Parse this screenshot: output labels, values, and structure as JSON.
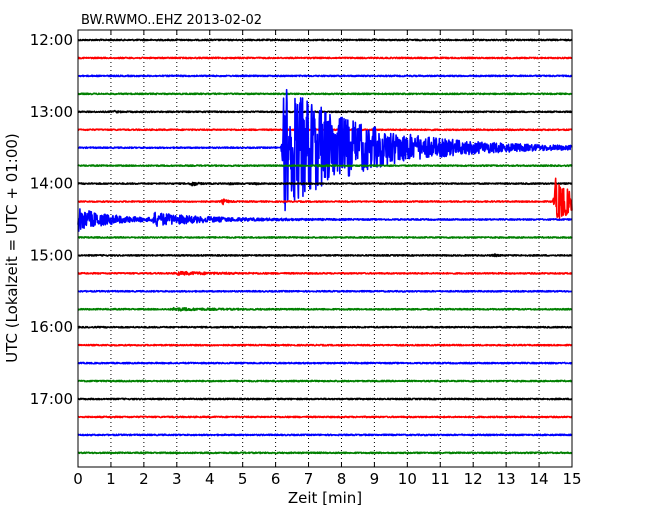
{
  "chart_data": {
    "type": "line",
    "subtype": "dayplot-seismogram",
    "title": "BW.RWMO..EHZ 2013-02-02",
    "xlabel": "Zeit  [min]",
    "ylabel": "UTC (Lokalzeit = UTC + 01:00)",
    "xlim": [
      0,
      15
    ],
    "x_ticks": [
      0,
      1,
      2,
      3,
      4,
      5,
      6,
      7,
      8,
      9,
      10,
      11,
      12,
      13,
      14,
      15
    ],
    "x_tick_labels": [
      "0",
      "1",
      "2",
      "3",
      "4",
      "5",
      "6",
      "7",
      "8",
      "9",
      "10",
      "11",
      "12",
      "13",
      "14",
      "15"
    ],
    "y_tick_labels": [
      "12:00",
      "13:00",
      "14:00",
      "15:00",
      "16:00",
      "17:00"
    ],
    "grid": {
      "x": true,
      "y": false,
      "style": "dotted"
    },
    "interval_minutes": 15,
    "trace_colors": [
      "#000000",
      "#ff0000",
      "#0000ff",
      "#008000"
    ],
    "traces": [
      {
        "start": "12:00",
        "events": []
      },
      {
        "start": "12:15",
        "events": []
      },
      {
        "start": "12:30",
        "events": []
      },
      {
        "start": "12:45",
        "events": []
      },
      {
        "start": "13:00",
        "events": [
          {
            "t": 1.1,
            "amp": 0.05
          }
        ]
      },
      {
        "start": "13:15",
        "events": []
      },
      {
        "start": "13:30",
        "events": [
          {
            "t": 6.25,
            "amp": 4.5,
            "decay": 2.4
          }
        ]
      },
      {
        "start": "13:45",
        "events": [
          {
            "t": 7.3,
            "amp": 0.08
          }
        ]
      },
      {
        "start": "14:00",
        "events": [
          {
            "t": 3.45,
            "amp": 0.2
          },
          {
            "t": 4.6,
            "amp": 0.04
          },
          {
            "t": 5.4,
            "amp": 0.04
          }
        ]
      },
      {
        "start": "14:15",
        "events": [
          {
            "t": 4.4,
            "amp": 0.18
          },
          {
            "t": 14.5,
            "amp": 1.6,
            "decay": 0.6
          }
        ]
      },
      {
        "start": "14:30",
        "events": [
          {
            "t": 0.0,
            "amp": 0.8,
            "decay": 1.0
          },
          {
            "t": 2.3,
            "amp": 0.4,
            "decay": 1.6
          }
        ]
      },
      {
        "start": "14:45",
        "events": []
      },
      {
        "start": "15:00",
        "events": [
          {
            "t": 12.6,
            "amp": 0.08
          }
        ]
      },
      {
        "start": "15:15",
        "events": [
          {
            "t": 3.0,
            "amp": 0.1,
            "decay": 1.0
          }
        ]
      },
      {
        "start": "15:30",
        "events": []
      },
      {
        "start": "15:45",
        "events": [
          {
            "t": 2.9,
            "amp": 0.08,
            "decay": 1.0
          }
        ]
      },
      {
        "start": "16:00",
        "events": []
      },
      {
        "start": "16:15",
        "events": []
      },
      {
        "start": "16:30",
        "events": []
      },
      {
        "start": "16:45",
        "events": []
      },
      {
        "start": "17:00",
        "events": []
      },
      {
        "start": "17:15",
        "events": []
      },
      {
        "start": "17:30",
        "events": []
      },
      {
        "start": "17:45",
        "events": []
      }
    ]
  }
}
